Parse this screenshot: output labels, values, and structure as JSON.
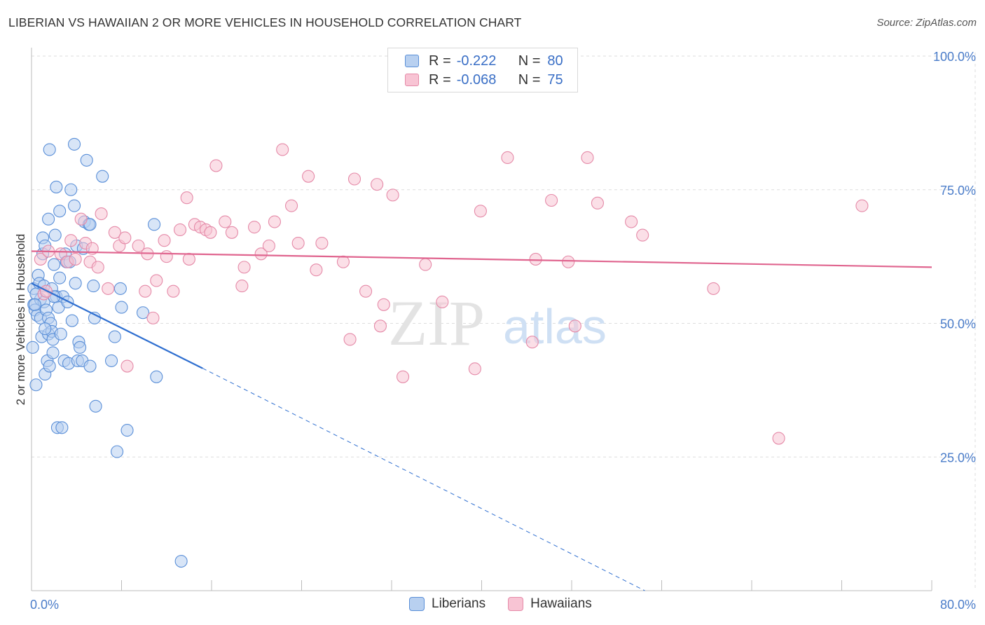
{
  "title": "LIBERIAN VS HAWAIIAN 2 OR MORE VEHICLES IN HOUSEHOLD CORRELATION CHART",
  "source": "Source: ZipAtlas.com",
  "legend": {
    "rows": [
      {
        "r_label": "R =",
        "r_value": "-0.222",
        "n_label": "N =",
        "n_value": "80"
      },
      {
        "r_label": "R =",
        "r_value": "-0.068",
        "n_label": "N =",
        "n_value": "75"
      }
    ]
  },
  "bottom_legend": [
    "Liberians",
    "Hawaiians"
  ],
  "colors": {
    "blue_fill": "#b8d0f0",
    "blue_stroke": "#5a8fd8",
    "blue_line": "#2f6fd0",
    "pink_fill": "#f8c4d4",
    "pink_stroke": "#e58aa8",
    "pink_line": "#e0658f",
    "grid": "#dddddd",
    "tick_text": "#4a7cc9"
  },
  "watermark": {
    "zip": "ZIP",
    "atlas": "atlas"
  },
  "chart_data": {
    "type": "scatter",
    "title": "LIBERIAN VS HAWAIIAN 2 OR MORE VEHICLES IN HOUSEHOLD CORRELATION CHART",
    "xlabel": "",
    "ylabel": "2 or more Vehicles in Household",
    "xlim": [
      0,
      80
    ],
    "ylim": [
      0,
      102
    ],
    "x_tick_labels": [
      "0.0%",
      "80.0%"
    ],
    "y_ticks": [
      25,
      50,
      75,
      100
    ],
    "y_tick_labels": [
      "25.0%",
      "50.0%",
      "75.0%",
      "100.0%"
    ],
    "grid": true,
    "series": [
      {
        "name": "Liberians",
        "r": -0.222,
        "n": 80,
        "trend": {
          "x0": 0,
          "y0": 57.5,
          "x1": 15.2,
          "y1": 41.6,
          "dashed_to_x": 54.5,
          "dashed_to_y": 0
        },
        "points": [
          [
            0.1,
            45.5
          ],
          [
            0.2,
            56.5
          ],
          [
            0.2,
            53.5
          ],
          [
            0.3,
            52.5
          ],
          [
            0.4,
            38.5
          ],
          [
            0.5,
            51.5
          ],
          [
            0.6,
            59
          ],
          [
            0.7,
            57.5
          ],
          [
            0.8,
            51
          ],
          [
            0.8,
            54.5
          ],
          [
            0.9,
            47.5
          ],
          [
            1.0,
            66
          ],
          [
            1.0,
            63
          ],
          [
            1.1,
            57
          ],
          [
            1.1,
            54
          ],
          [
            1.2,
            64.5
          ],
          [
            1.2,
            40.5
          ],
          [
            1.3,
            52.5
          ],
          [
            1.4,
            43
          ],
          [
            1.5,
            48
          ],
          [
            1.5,
            51
          ],
          [
            1.5,
            69.5
          ],
          [
            1.6,
            42
          ],
          [
            1.7,
            50
          ],
          [
            1.8,
            56.5
          ],
          [
            1.8,
            48.5
          ],
          [
            1.9,
            47
          ],
          [
            1.9,
            44.5
          ],
          [
            2.0,
            61
          ],
          [
            2.1,
            66.5
          ],
          [
            2.2,
            55
          ],
          [
            2.2,
            75.5
          ],
          [
            2.3,
            30.5
          ],
          [
            2.4,
            53
          ],
          [
            2.5,
            58.5
          ],
          [
            2.5,
            71
          ],
          [
            2.6,
            48
          ],
          [
            2.7,
            30.5
          ],
          [
            2.8,
            55
          ],
          [
            2.9,
            43
          ],
          [
            3.0,
            63
          ],
          [
            3.1,
            61.5
          ],
          [
            3.2,
            54
          ],
          [
            3.3,
            42.5
          ],
          [
            3.5,
            75
          ],
          [
            3.6,
            50.5
          ],
          [
            3.8,
            72
          ],
          [
            3.9,
            57.5
          ],
          [
            4.0,
            64.5
          ],
          [
            4.1,
            43
          ],
          [
            4.2,
            46.5
          ],
          [
            4.3,
            45.5
          ],
          [
            4.5,
            43
          ],
          [
            4.6,
            64
          ],
          [
            4.7,
            69
          ],
          [
            4.9,
            80.5
          ],
          [
            5.1,
            68.5
          ],
          [
            5.2,
            42
          ],
          [
            5.5,
            57
          ],
          [
            5.6,
            51
          ],
          [
            5.7,
            34.5
          ],
          [
            6.3,
            77.5
          ],
          [
            7.1,
            43
          ],
          [
            7.4,
            47.5
          ],
          [
            7.6,
            26
          ],
          [
            7.9,
            56.5
          ],
          [
            8.0,
            53
          ],
          [
            8.5,
            30
          ],
          [
            9.9,
            52
          ],
          [
            10.9,
            68.5
          ],
          [
            11.1,
            40
          ],
          [
            13.3,
            5.5
          ],
          [
            1.6,
            82.5
          ],
          [
            3.8,
            83.5
          ],
          [
            0.4,
            55.5
          ],
          [
            2.0,
            55
          ],
          [
            1.2,
            49
          ],
          [
            3.4,
            61.5
          ],
          [
            0.3,
            53.5
          ],
          [
            5.2,
            68.5
          ]
        ]
      },
      {
        "name": "Hawaiians",
        "r": -0.068,
        "n": 75,
        "trend": {
          "x0": 0,
          "y0": 63.5,
          "x1": 80,
          "y1": 60.5
        },
        "points": [
          [
            0.8,
            62
          ],
          [
            1.1,
            55.5
          ],
          [
            1.3,
            56
          ],
          [
            1.5,
            63.5
          ],
          [
            2.6,
            63
          ],
          [
            3.2,
            61.5
          ],
          [
            3.5,
            65.5
          ],
          [
            3.9,
            62
          ],
          [
            4.4,
            69.5
          ],
          [
            4.8,
            65
          ],
          [
            5.2,
            61.5
          ],
          [
            5.4,
            64
          ],
          [
            5.9,
            60.5
          ],
          [
            6.2,
            70.5
          ],
          [
            6.8,
            56.5
          ],
          [
            7.4,
            67
          ],
          [
            7.8,
            64.5
          ],
          [
            8.3,
            66
          ],
          [
            8.5,
            42
          ],
          [
            9.5,
            64.5
          ],
          [
            10.1,
            56
          ],
          [
            10.3,
            63
          ],
          [
            10.8,
            51
          ],
          [
            11.1,
            58
          ],
          [
            11.8,
            65.5
          ],
          [
            12.0,
            62.5
          ],
          [
            12.6,
            56
          ],
          [
            13.2,
            67.5
          ],
          [
            13.8,
            73.5
          ],
          [
            14.0,
            62
          ],
          [
            14.5,
            68.5
          ],
          [
            15.0,
            68
          ],
          [
            15.5,
            67.5
          ],
          [
            15.9,
            67
          ],
          [
            16.4,
            79.5
          ],
          [
            17.2,
            69
          ],
          [
            17.8,
            67
          ],
          [
            18.7,
            57
          ],
          [
            18.9,
            60.5
          ],
          [
            19.8,
            68
          ],
          [
            20.4,
            63
          ],
          [
            21.1,
            64.5
          ],
          [
            21.6,
            69
          ],
          [
            22.3,
            82.5
          ],
          [
            23.1,
            72
          ],
          [
            23.7,
            65
          ],
          [
            24.6,
            77.5
          ],
          [
            25.3,
            60
          ],
          [
            25.8,
            65
          ],
          [
            27.7,
            61.5
          ],
          [
            28.3,
            47
          ],
          [
            28.7,
            77
          ],
          [
            29.7,
            56
          ],
          [
            30.7,
            76
          ],
          [
            31.0,
            49.5
          ],
          [
            31.3,
            53.5
          ],
          [
            32.1,
            74
          ],
          [
            33.0,
            40
          ],
          [
            35.0,
            61
          ],
          [
            36.5,
            54
          ],
          [
            39.4,
            41.5
          ],
          [
            39.9,
            71
          ],
          [
            42.3,
            81
          ],
          [
            44.5,
            46.5
          ],
          [
            44.8,
            62
          ],
          [
            46.2,
            73
          ],
          [
            47.7,
            61.5
          ],
          [
            48.3,
            49.5
          ],
          [
            49.4,
            81
          ],
          [
            50.3,
            72.5
          ],
          [
            53.3,
            69
          ],
          [
            54.3,
            66.5
          ],
          [
            60.6,
            56.5
          ],
          [
            66.4,
            28.5
          ],
          [
            73.8,
            72
          ]
        ]
      }
    ]
  }
}
